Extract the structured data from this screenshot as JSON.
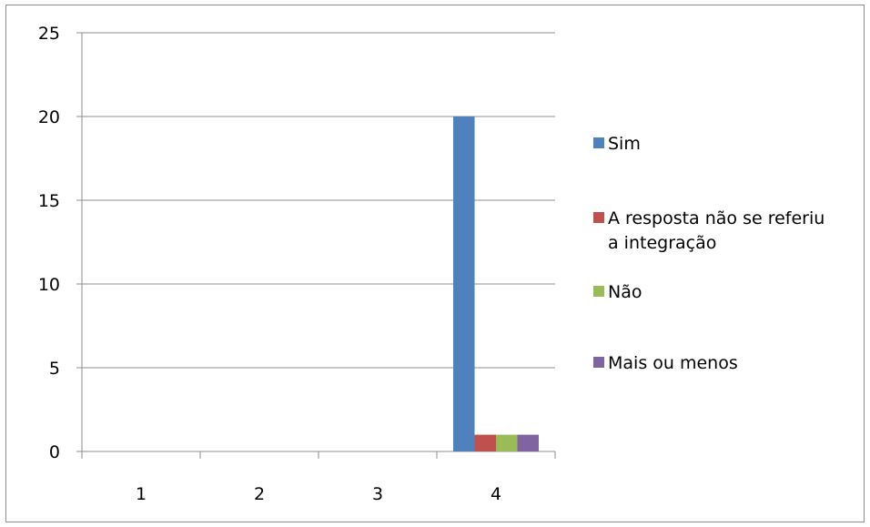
{
  "chart_data": {
    "type": "bar",
    "title": "",
    "xlabel": "",
    "ylabel": "",
    "categories": [
      "1",
      "2",
      "3",
      "4"
    ],
    "ylim": [
      0,
      25
    ],
    "yticks": [
      "0",
      "5",
      "10",
      "15",
      "20",
      "25"
    ],
    "grid": true,
    "legend_position": "right",
    "series": [
      {
        "name": "Sim",
        "color": "#4F81BD",
        "values": [
          0,
          0,
          0,
          20
        ]
      },
      {
        "name": "A resposta não se referiu a integração",
        "color": "#C0504D",
        "values": [
          0,
          0,
          0,
          1
        ]
      },
      {
        "name": "Não",
        "color": "#9BBB59",
        "values": [
          0,
          0,
          0,
          1
        ]
      },
      {
        "name": "Mais ou menos",
        "color": "#8064A2",
        "values": [
          0,
          0,
          0,
          1
        ]
      }
    ]
  }
}
